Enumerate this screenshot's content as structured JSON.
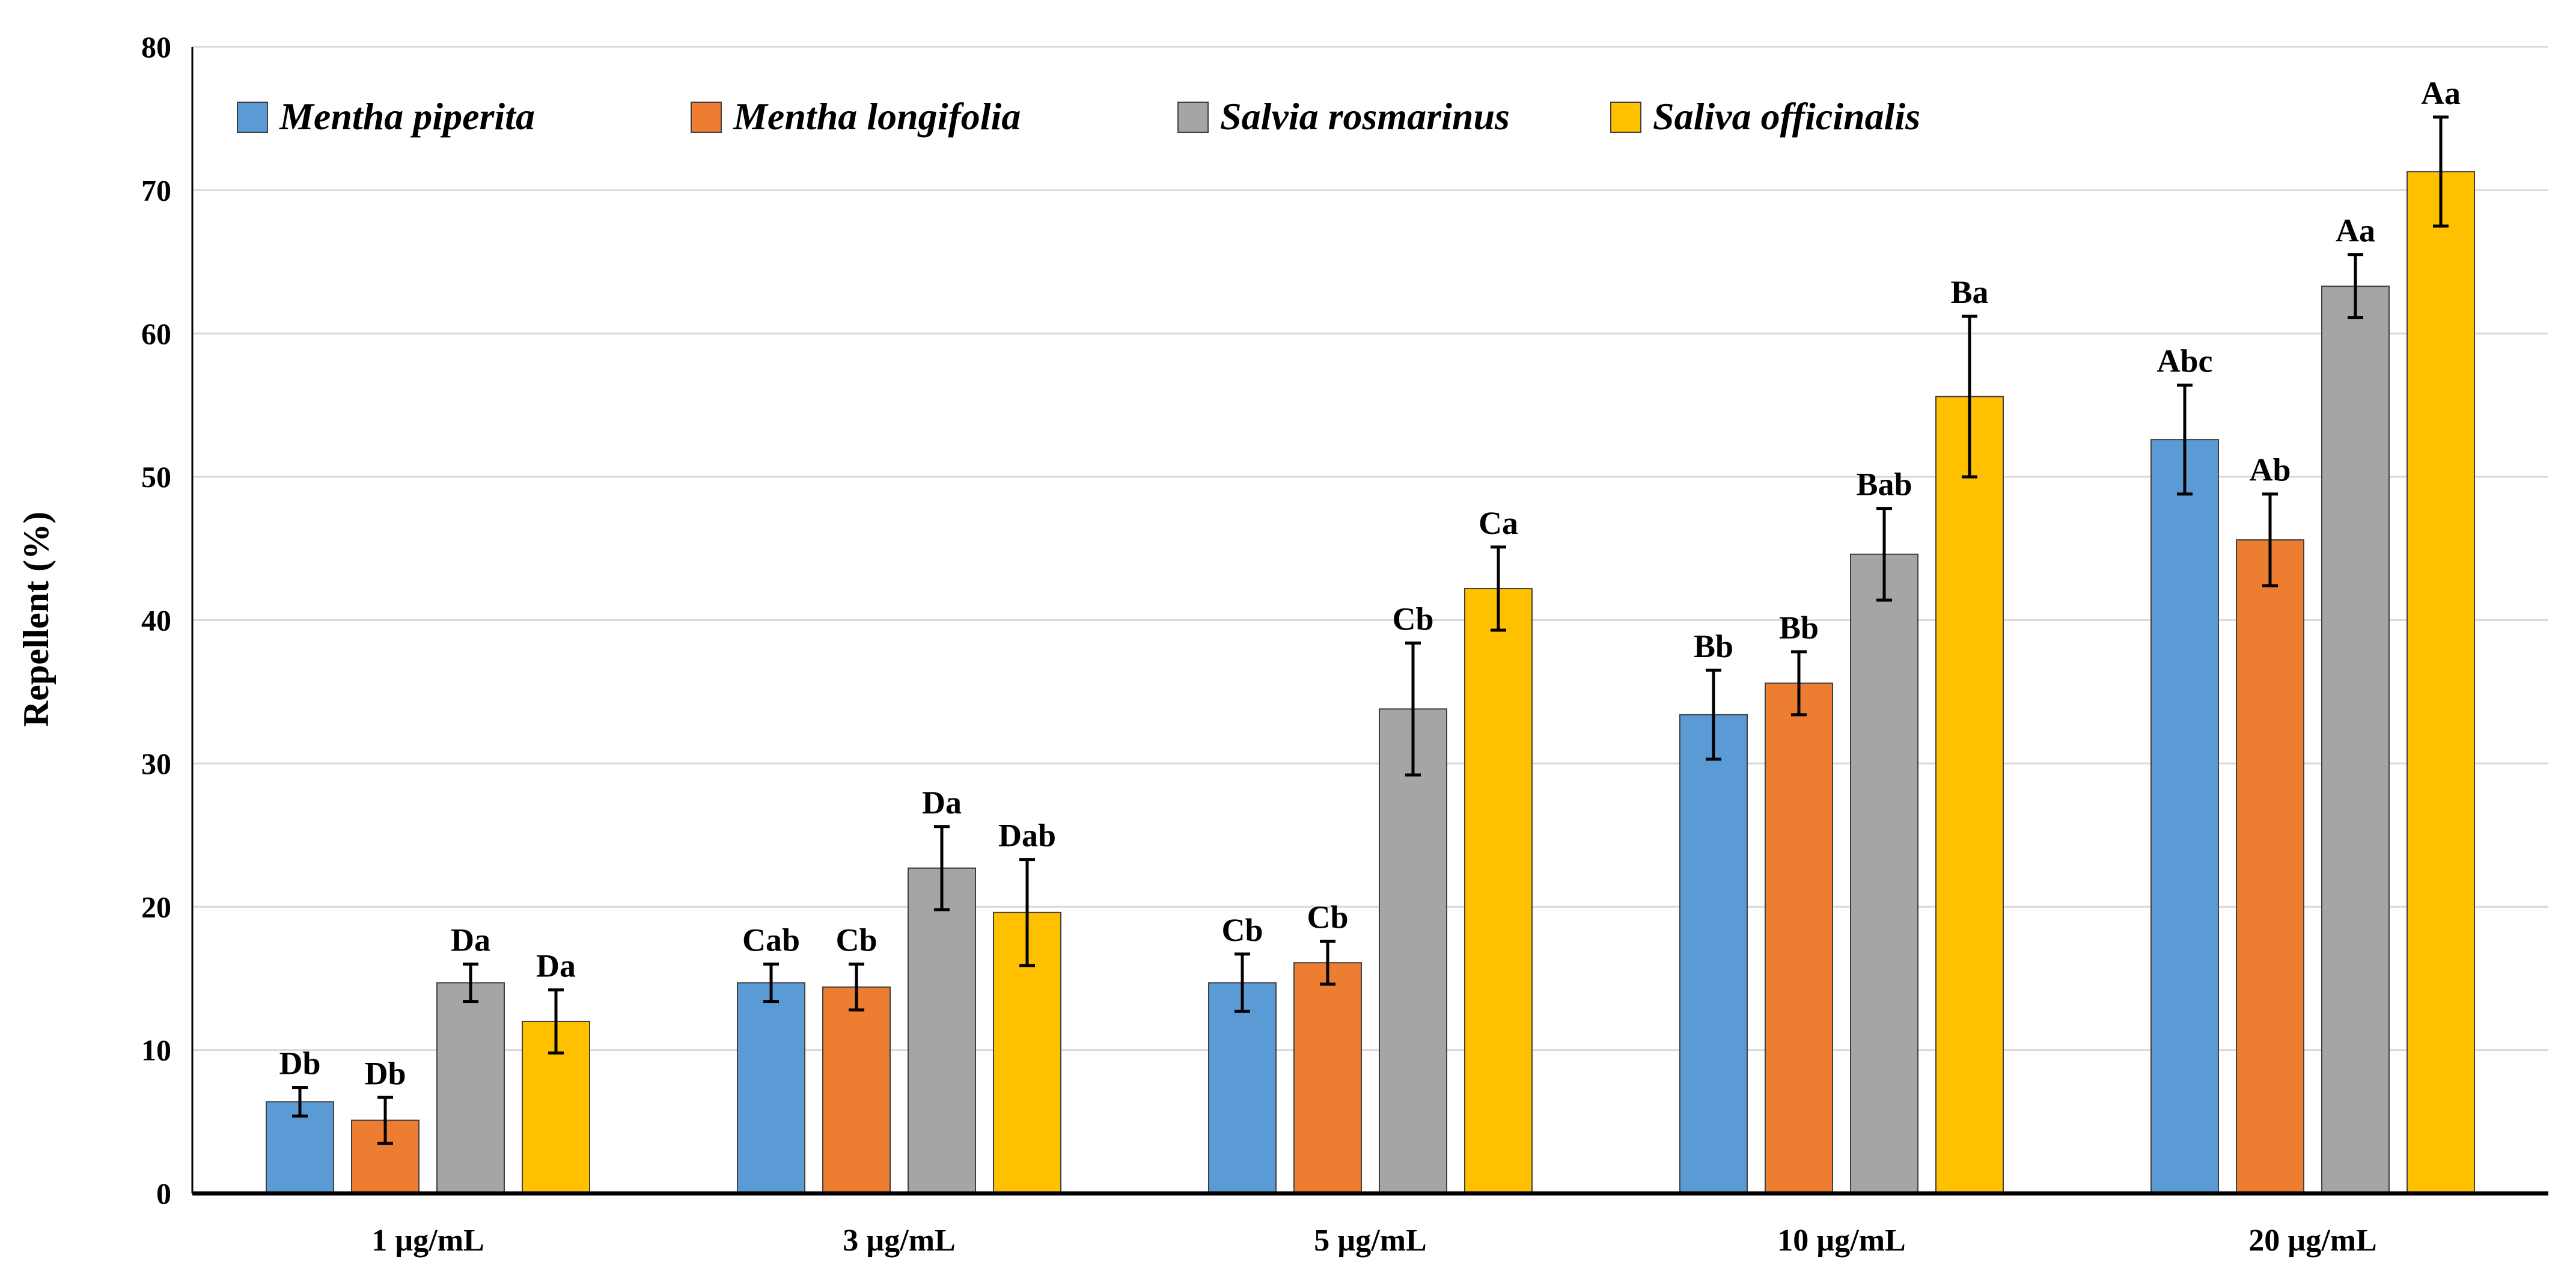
{
  "chart_data": {
    "type": "bar",
    "title": "",
    "xlabel": "",
    "ylabel": "Repellent (%)",
    "ylim": [
      0,
      80
    ],
    "yticks": [
      0,
      10,
      20,
      30,
      40,
      50,
      60,
      70,
      80
    ],
    "grid": true,
    "legend_position": "top",
    "categories": [
      "1 µg/mL",
      "3 µg/mL",
      "5 µg/mL",
      "10 µg/mL",
      "20 µg/mL"
    ],
    "series": [
      {
        "name": "Mentha piperita",
        "color": "#5b9bd5",
        "values": [
          6.4,
          14.7,
          14.7,
          33.4,
          52.6
        ],
        "errors": [
          1.0,
          1.3,
          2.0,
          3.1,
          3.8
        ],
        "labels": [
          "Db",
          "Cab",
          "Cb",
          "Bb",
          "Abc"
        ]
      },
      {
        "name": "Mentha longifolia",
        "color": "#ed7d31",
        "values": [
          5.1,
          14.4,
          16.1,
          35.6,
          45.6
        ],
        "errors": [
          1.6,
          1.6,
          1.5,
          2.2,
          3.2
        ],
        "labels": [
          "Db",
          "Cb",
          "Cb",
          "Bb",
          "Ab"
        ]
      },
      {
        "name": "Salvia rosmarinus",
        "color": "#a5a5a5",
        "values": [
          14.7,
          22.7,
          33.8,
          44.6,
          63.3
        ],
        "errors": [
          1.3,
          2.9,
          4.6,
          3.2,
          2.2
        ],
        "labels": [
          "Da",
          "Da",
          "Cb",
          "Bab",
          "Aa"
        ]
      },
      {
        "name": "Saliva officinalis",
        "color": "#ffc000",
        "values": [
          12.0,
          19.6,
          42.2,
          55.6,
          71.3
        ],
        "errors": [
          2.2,
          3.7,
          2.9,
          5.6,
          3.8
        ],
        "labels": [
          "Da",
          "Dab",
          "Ca",
          "Ba",
          "Aa"
        ]
      }
    ]
  }
}
